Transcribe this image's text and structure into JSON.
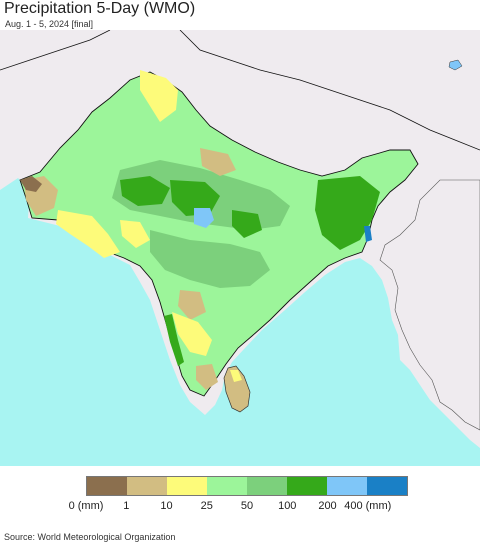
{
  "title": "Precipitation 5-Day (WMO)",
  "subtitle": "Aug. 1 - 5, 2024 [final]",
  "source": "Source: World Meteorological Organization",
  "colors": {
    "ocean": "#a8f4f2",
    "land_outside": "#efebef",
    "border": "#111111"
  },
  "legend": {
    "swatches": [
      {
        "color": "#8b6f4e"
      },
      {
        "color": "#d2bd82"
      },
      {
        "color": "#fdfb7a"
      },
      {
        "color": "#9cf59a"
      },
      {
        "color": "#7cd07c"
      },
      {
        "color": "#35a91a"
      },
      {
        "color": "#7fc6f8"
      },
      {
        "color": "#1a80c6"
      }
    ],
    "labels": [
      "0 (mm)",
      "1",
      "10",
      "25",
      "50",
      "100",
      "200",
      "400 (mm)"
    ]
  }
}
